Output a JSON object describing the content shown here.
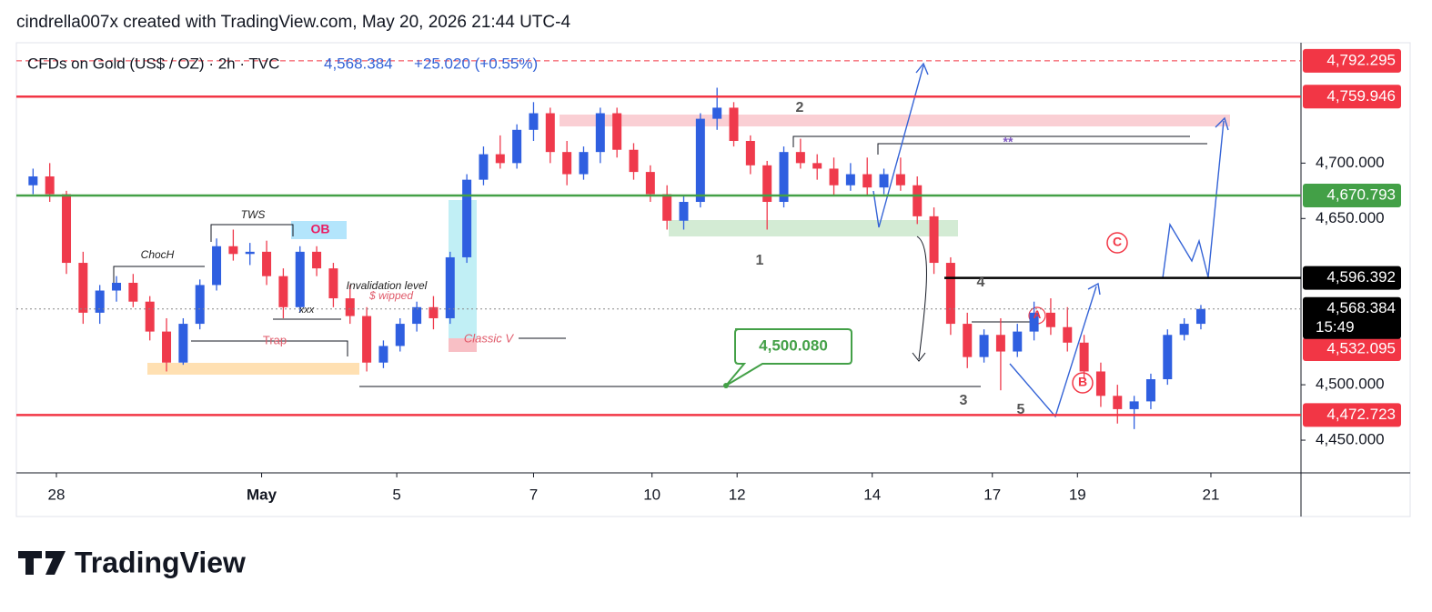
{
  "chart_data": {
    "type": "candlestick",
    "header": "cindrella007x created with TradingView.com, May 20, 2026 21:44 UTC-4",
    "title": "CFDs on Gold (US$ / OZ) · 2h · TVC",
    "legend_price": "4,568.384",
    "legend_change": "+25.020 (+0.55%)",
    "countdown": "15:49",
    "brand": "TradingView",
    "up_color": "#2f5fe0",
    "down_color": "#ef3a4c",
    "xlim": [
      -1,
      76
    ],
    "xticks": [
      {
        "value": 1.4,
        "label": "28"
      },
      {
        "value": 13.7,
        "label": "May"
      },
      {
        "value": 21.8,
        "label": "5"
      },
      {
        "value": 30.0,
        "label": "7"
      },
      {
        "value": 37.1,
        "label": "10"
      },
      {
        "value": 42.2,
        "label": "12"
      },
      {
        "value": 50.3,
        "label": "14"
      },
      {
        "value": 57.5,
        "label": "17"
      },
      {
        "value": 62.6,
        "label": "19"
      },
      {
        "value": 70.6,
        "label": "21"
      }
    ],
    "ylim": [
      4420.5,
      4808.6
    ],
    "yticks": [
      {
        "value": 4450,
        "label": "4,450.000"
      },
      {
        "value": 4500,
        "label": "4,500.000"
      },
      {
        "value": 4650,
        "label": "4,650.000"
      },
      {
        "value": 4700,
        "label": "4,700.000"
      }
    ],
    "price_levels": [
      {
        "value": 4532.095,
        "label": "4,532.095",
        "color": "#f23645",
        "line": "none"
      },
      {
        "value": 4792.295,
        "label": "4,792.295",
        "color": "#f23645",
        "line": "dashed"
      },
      {
        "value": 4759.946,
        "label": "4,759.946",
        "color": "#f23645",
        "line": "solid"
      },
      {
        "value": 4670.793,
        "label": "4,670.793",
        "color": "#43a047",
        "line": "solid"
      },
      {
        "value": 4596.392,
        "label": "4,596.392",
        "color": "#000000",
        "line": "solid"
      },
      {
        "value": 4472.723,
        "label": "4,472.723",
        "color": "#f23645",
        "line": "solid"
      },
      {
        "value": 4568.384,
        "label": "4,568.384",
        "color": "#000000",
        "line": "dotted"
      }
    ],
    "annotations": [
      "TWS",
      "OB",
      "ChocH",
      "Invalidation level",
      "$ wipped",
      "xxx",
      "Trap",
      "Classic V",
      "4,500.080",
      "2",
      "1",
      "4",
      "3",
      "5",
      "C",
      "B",
      "A",
      "**"
    ],
    "candles": {
      "open": [
        4680,
        4688,
        4672,
        4610,
        4565,
        4585,
        4592,
        4575,
        4548,
        4520,
        4555,
        4590,
        4625,
        4618,
        4620,
        4598,
        4570,
        4620,
        4605,
        4578,
        4562,
        4520,
        4535,
        4555,
        4570,
        4560,
        4615,
        4685,
        4708,
        4700,
        4730,
        4745,
        4710,
        4690,
        4710,
        4745,
        4712,
        4692,
        4672,
        4648,
        4665,
        4740,
        4750,
        4720,
        4698,
        4665,
        4710,
        4700,
        4695,
        4680,
        4690,
        4678,
        4690,
        4680,
        4652,
        4610,
        4555,
        4525,
        4545,
        4530,
        4548,
        4565,
        4552,
        4538,
        4512,
        4490,
        4478,
        4485,
        4505,
        4545,
        4555
      ],
      "high": [
        4695,
        4700,
        4675,
        4620,
        4590,
        4598,
        4600,
        4580,
        4560,
        4560,
        4595,
        4632,
        4640,
        4628,
        4630,
        4605,
        4625,
        4625,
        4610,
        4590,
        4570,
        4540,
        4560,
        4575,
        4580,
        4620,
        4690,
        4715,
        4725,
        4735,
        4755,
        4750,
        4720,
        4715,
        4750,
        4750,
        4718,
        4698,
        4680,
        4670,
        4745,
        4768,
        4755,
        4725,
        4702,
        4715,
        4722,
        4708,
        4705,
        4700,
        4705,
        4695,
        4705,
        4688,
        4660,
        4615,
        4565,
        4550,
        4560,
        4555,
        4575,
        4578,
        4570,
        4545,
        4520,
        4500,
        4490,
        4510,
        4550,
        4560,
        4572
      ],
      "low": [
        4672,
        4665,
        4600,
        4555,
        4555,
        4575,
        4570,
        4540,
        4512,
        4518,
        4550,
        4585,
        4612,
        4608,
        4590,
        4560,
        4565,
        4598,
        4570,
        4555,
        4512,
        4515,
        4530,
        4548,
        4550,
        4555,
        4610,
        4680,
        4695,
        4695,
        4720,
        4700,
        4680,
        4685,
        4700,
        4705,
        4685,
        4665,
        4640,
        4640,
        4660,
        4730,
        4715,
        4690,
        4640,
        4660,
        4695,
        4685,
        4670,
        4675,
        4670,
        4672,
        4675,
        4645,
        4600,
        4545,
        4515,
        4520,
        4495,
        4525,
        4540,
        4545,
        4530,
        4505,
        4480,
        4465,
        4460,
        4478,
        4500,
        4540,
        4550
      ],
      "close": [
        4688,
        4672,
        4610,
        4565,
        4585,
        4592,
        4575,
        4548,
        4520,
        4555,
        4590,
        4625,
        4618,
        4620,
        4598,
        4570,
        4620,
        4605,
        4578,
        4562,
        4520,
        4535,
        4555,
        4570,
        4560,
        4615,
        4685,
        4708,
        4700,
        4730,
        4745,
        4710,
        4690,
        4710,
        4745,
        4712,
        4692,
        4672,
        4648,
        4665,
        4740,
        4750,
        4720,
        4698,
        4665,
        4710,
        4700,
        4695,
        4680,
        4690,
        4678,
        4690,
        4680,
        4652,
        4610,
        4555,
        4525,
        4545,
        4530,
        4548,
        4565,
        4552,
        4538,
        4512,
        4490,
        4478,
        4485,
        4505,
        4545,
        4555,
        4568.384
      ]
    }
  }
}
